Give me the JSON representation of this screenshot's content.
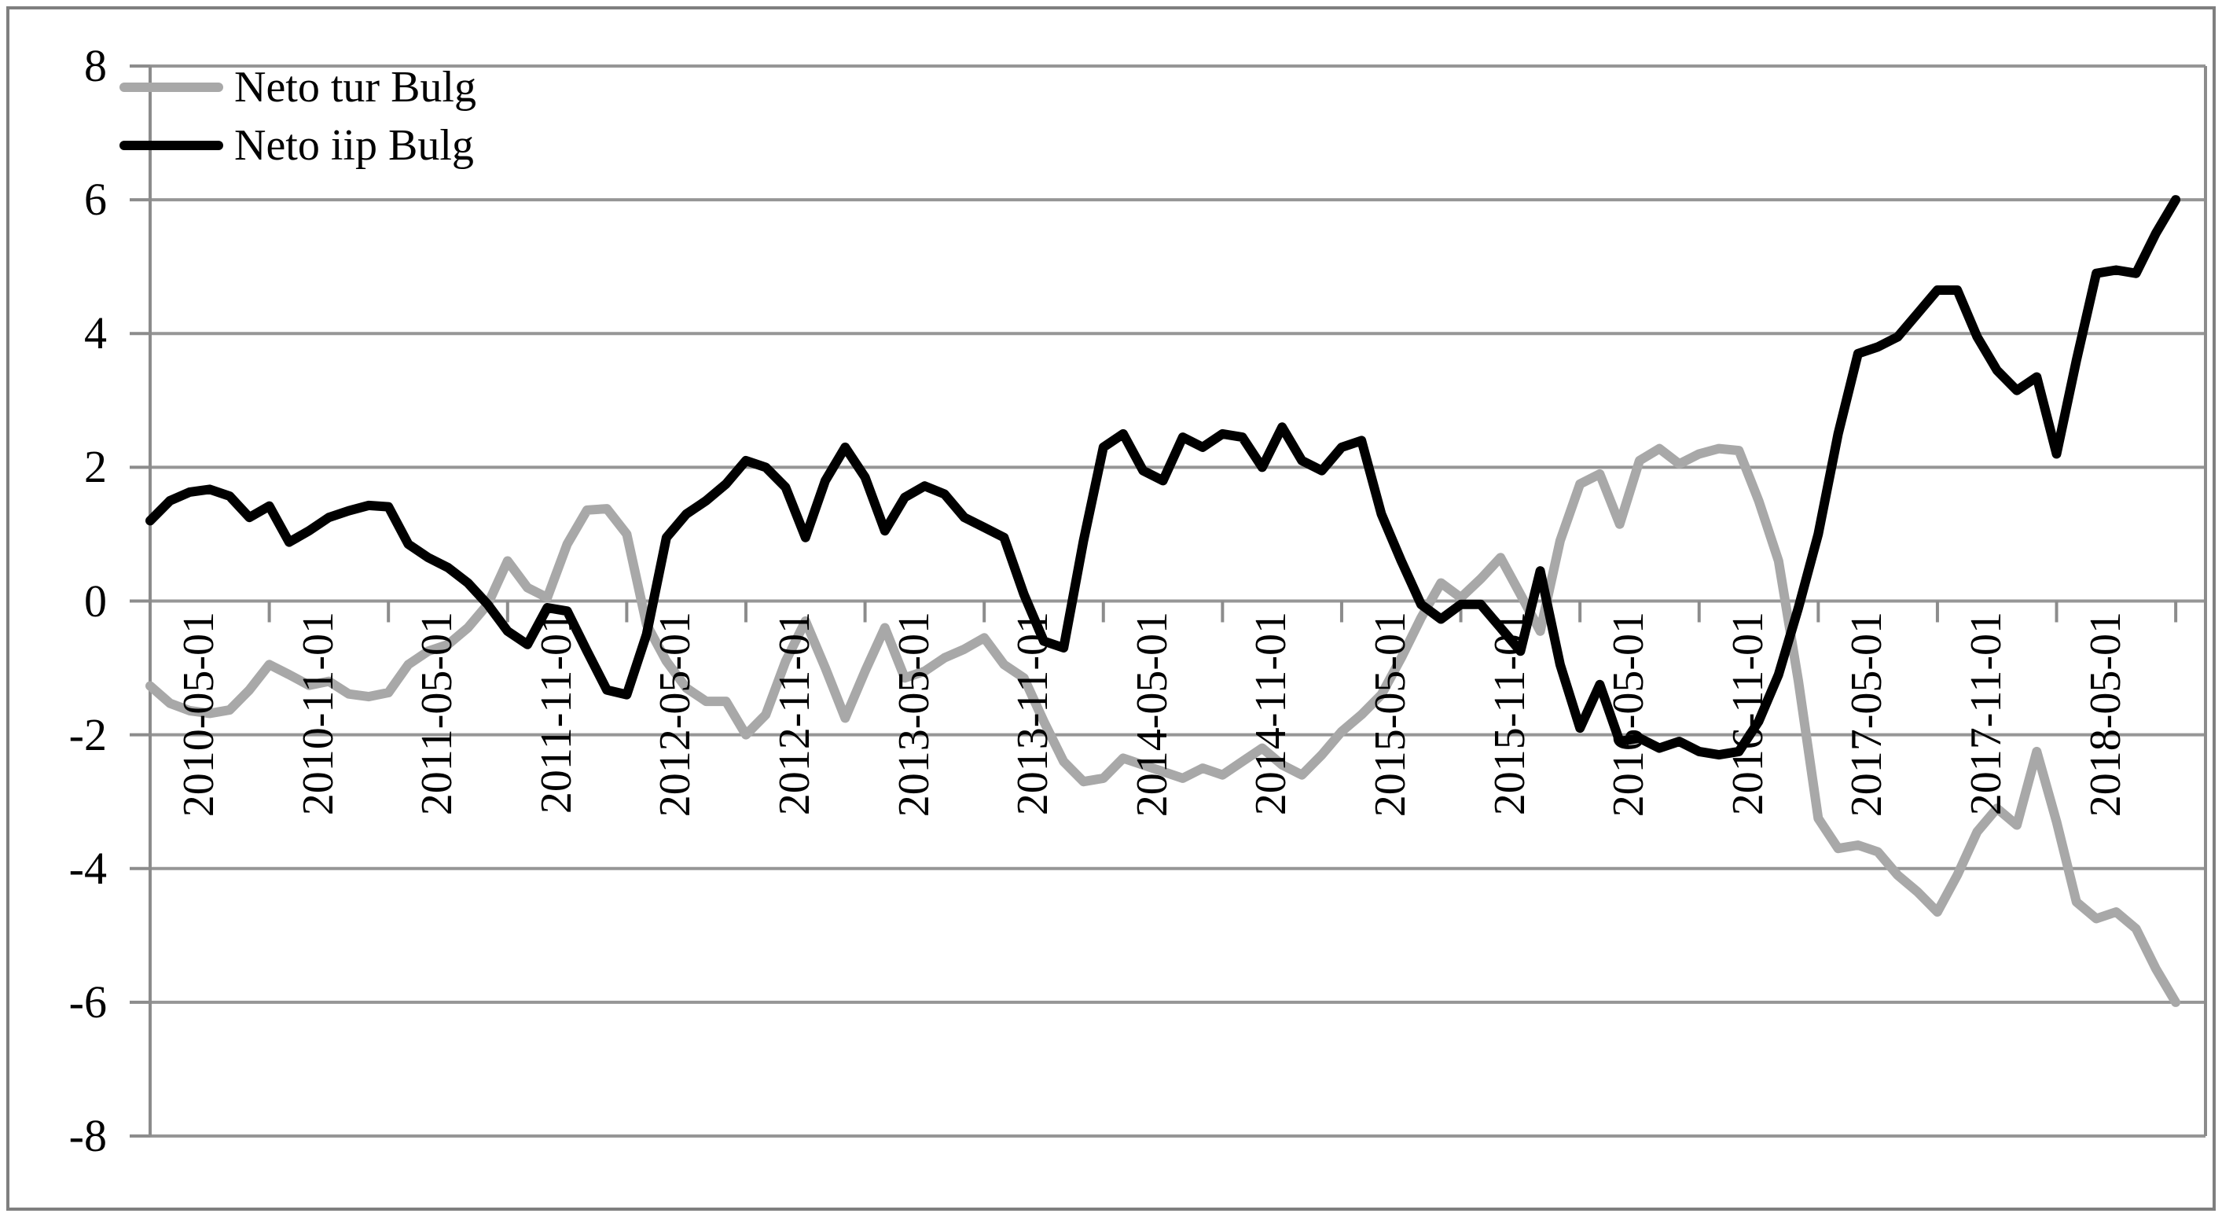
{
  "chart_data": {
    "type": "line",
    "title": "",
    "xlabel": "",
    "ylabel": "",
    "ylim": [
      -8,
      8
    ],
    "ytick_step": 2,
    "grid": true,
    "legend_position": "top-left-inside",
    "x_start": "2010-05-01",
    "x_end": "2018-11-01",
    "x_frequency": "monthly",
    "xtick_labels": [
      "2010-05-01",
      "2010-11-01",
      "2011-05-01",
      "2011-11-01",
      "2012-05-01",
      "2012-11-01",
      "2013-05-01",
      "2013-11-01",
      "2014-05-01",
      "2014-11-01",
      "2015-05-01",
      "2015-11-01",
      "2016-05-01",
      "2016-11-01",
      "2017-05-01",
      "2017-11-01",
      "2018-05-01"
    ],
    "ytick_labels": [
      "8",
      "6",
      "4",
      "2",
      "0",
      "-2",
      "-4",
      "-6",
      "-8"
    ],
    "series": [
      {
        "name": "Neto tur Bulg",
        "color": "#a8a8a8",
        "values": [
          -1.27,
          -1.53,
          -1.64,
          -1.68,
          -1.63,
          -1.33,
          -0.95,
          -1.1,
          -1.26,
          -1.2,
          -1.39,
          -1.43,
          -1.37,
          -0.95,
          -0.75,
          -0.65,
          -0.4,
          -0.05,
          0.6,
          0.2,
          0.05,
          0.85,
          1.36,
          1.38,
          1.0,
          -0.35,
          -0.9,
          -1.3,
          -1.5,
          -1.5,
          -2.0,
          -1.7,
          -0.9,
          -0.3,
          -1.0,
          -1.75,
          -1.05,
          -0.4,
          -1.15,
          -1.05,
          -0.85,
          -0.72,
          -0.55,
          -0.95,
          -1.15,
          -1.8,
          -2.4,
          -2.7,
          -2.65,
          -2.35,
          -2.45,
          -2.55,
          -2.65,
          -2.5,
          -2.6,
          -2.4,
          -2.2,
          -2.45,
          -2.6,
          -2.3,
          -1.95,
          -1.7,
          -1.4,
          -0.85,
          -0.25,
          0.27,
          0.05,
          0.33,
          0.65,
          0.1,
          -0.45,
          0.9,
          1.75,
          1.9,
          1.15,
          2.1,
          2.28,
          2.05,
          2.2,
          2.28,
          2.25,
          1.5,
          0.6,
          -1.2,
          -3.25,
          -3.7,
          -3.65,
          -3.75,
          -4.1,
          -4.35,
          -4.65,
          -4.1,
          -3.45,
          -3.1,
          -3.35,
          -2.25,
          -3.3,
          -4.5,
          -4.75,
          -4.65,
          -4.9,
          -5.5,
          -6.0
        ]
      },
      {
        "name": "Neto iip Bulg",
        "color": "#000000",
        "values": [
          1.2,
          1.5,
          1.63,
          1.67,
          1.57,
          1.25,
          1.42,
          0.88,
          1.05,
          1.25,
          1.35,
          1.43,
          1.41,
          0.85,
          0.65,
          0.5,
          0.27,
          -0.05,
          -0.45,
          -0.65,
          -0.1,
          -0.15,
          -0.75,
          -1.33,
          -1.4,
          -0.5,
          0.95,
          1.3,
          1.5,
          1.75,
          2.1,
          2.0,
          1.7,
          0.95,
          1.8,
          2.3,
          1.85,
          1.05,
          1.55,
          1.72,
          1.6,
          1.25,
          1.1,
          0.95,
          0.1,
          -0.6,
          -0.7,
          0.9,
          2.3,
          2.5,
          1.95,
          1.8,
          2.45,
          2.3,
          2.5,
          2.45,
          2.0,
          2.6,
          2.1,
          1.95,
          2.3,
          2.4,
          1.3,
          0.6,
          -0.05,
          -0.27,
          -0.05,
          -0.05,
          -0.4,
          -0.75,
          0.45,
          -0.95,
          -1.9,
          -1.25,
          -2.1,
          -2.05,
          -2.2,
          -2.1,
          -2.25,
          -2.3,
          -2.25,
          -1.8,
          -1.1,
          -0.1,
          1.0,
          2.5,
          3.7,
          3.8,
          3.95,
          4.3,
          4.65,
          4.65,
          3.95,
          3.45,
          3.15,
          3.35,
          2.2,
          3.6,
          4.9,
          4.95,
          4.9,
          5.5,
          6.0
        ]
      }
    ]
  },
  "legend": {
    "items": [
      {
        "label": "Neto tur Bulg",
        "color": "#a8a8a8"
      },
      {
        "label": "Neto iip Bulg",
        "color": "#000000"
      }
    ]
  },
  "colors": {
    "gridline": "#969696",
    "axis": "#8c8c8c",
    "frame_border": "#7f7f7f",
    "background": "#ffffff"
  }
}
